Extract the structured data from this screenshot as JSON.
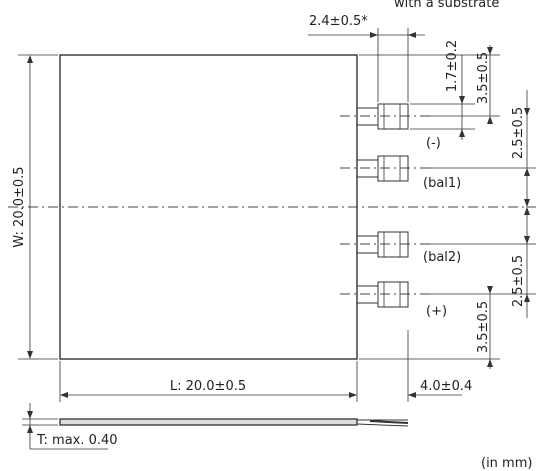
{
  "diagram": {
    "note_top": "with a substrate",
    "unit_note": "(in mm)",
    "dims": {
      "width": "W: 20.0±0.5",
      "length": "L: 20.0±0.5",
      "thickness": "T: max. 0.40",
      "tab_length": "2.4±0.5*",
      "tab_width": "1.7±0.2",
      "edge_to_tab_top": "3.5±0.5",
      "pitch_top": "2.5±0.5",
      "pitch_bottom": "2.5±0.5",
      "edge_to_tab_bottom": "3.5±0.5",
      "overhang": "4.0±0.4"
    },
    "terminals": [
      "(-)",
      "(bal1)",
      "(bal2)",
      "(+)"
    ]
  }
}
